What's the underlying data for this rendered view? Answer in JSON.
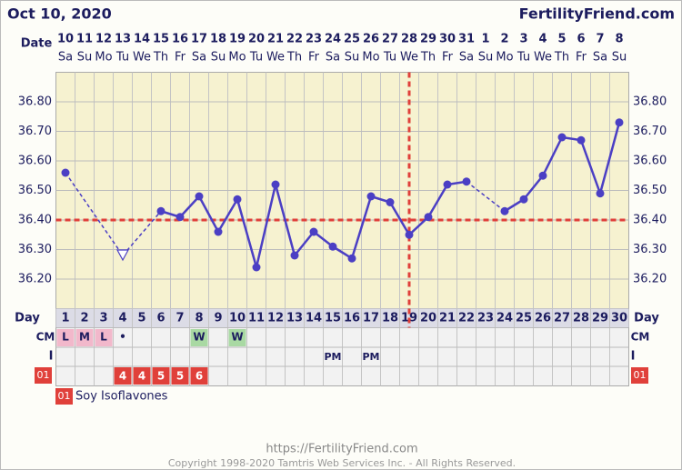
{
  "chart_data": {
    "type": "line",
    "title": "Oct 10, 2020",
    "site": "FertilityFriend.com",
    "date_label": "Date",
    "dates": [
      "10",
      "11",
      "12",
      "13",
      "14",
      "15",
      "16",
      "17",
      "18",
      "19",
      "20",
      "21",
      "22",
      "23",
      "24",
      "25",
      "26",
      "27",
      "28",
      "29",
      "30",
      "31",
      "1",
      "2",
      "3",
      "4",
      "5",
      "6",
      "7",
      "8"
    ],
    "weekdays": [
      "Sa",
      "Su",
      "Mo",
      "Tu",
      "We",
      "Th",
      "Fr",
      "Sa",
      "Su",
      "Mo",
      "Tu",
      "We",
      "Th",
      "Fr",
      "Sa",
      "Su",
      "Mo",
      "Tu",
      "We",
      "Th",
      "Fr",
      "Sa",
      "Su",
      "Mo",
      "Tu",
      "We",
      "Th",
      "Fr",
      "Sa",
      "Su"
    ],
    "day_label": "Day",
    "days": [
      1,
      2,
      3,
      4,
      5,
      6,
      7,
      8,
      9,
      10,
      11,
      12,
      13,
      14,
      15,
      16,
      17,
      18,
      19,
      20,
      21,
      22,
      23,
      24,
      25,
      26,
      27,
      28,
      29,
      30
    ],
    "values": [
      36.56,
      null,
      null,
      36.28,
      null,
      36.43,
      36.41,
      36.48,
      36.36,
      36.47,
      36.24,
      36.52,
      36.28,
      36.36,
      36.31,
      36.27,
      36.48,
      36.46,
      36.35,
      36.41,
      36.52,
      36.53,
      null,
      36.43,
      36.47,
      36.55,
      36.68,
      36.67,
      36.49,
      36.73
    ],
    "open_marker_days": [
      4
    ],
    "color": "#4b3fc4",
    "coverline": 36.4,
    "ovulation_day": 19,
    "reference_color": "#e0403a",
    "ylim": [
      36.1,
      36.9
    ],
    "yticks": [
      {
        "value": 36.2,
        "label": "36.20"
      },
      {
        "value": 36.3,
        "label": "36.30"
      },
      {
        "value": 36.4,
        "label": "36.40"
      },
      {
        "value": 36.5,
        "label": "36.50"
      },
      {
        "value": 36.6,
        "label": "36.60"
      },
      {
        "value": 36.7,
        "label": "36.70"
      },
      {
        "value": 36.8,
        "label": "36.80"
      }
    ],
    "grid": true,
    "cm_label": "CM",
    "cm": [
      "L",
      "M",
      "L",
      "•",
      null,
      null,
      null,
      "W",
      null,
      "W",
      null,
      null,
      null,
      null,
      null,
      null,
      null,
      null,
      null,
      null,
      null,
      null,
      null,
      null,
      null,
      null,
      null,
      null,
      null,
      null
    ],
    "i_label": "I",
    "i": [
      null,
      null,
      null,
      null,
      null,
      null,
      null,
      null,
      null,
      null,
      null,
      null,
      null,
      null,
      "PM",
      null,
      "PM",
      null,
      null,
      null,
      null,
      null,
      null,
      null,
      null,
      null,
      null,
      null,
      null,
      null
    ],
    "supplement_code": "01",
    "supplement": [
      null,
      null,
      null,
      4,
      4,
      5,
      5,
      6,
      null,
      null,
      null,
      null,
      null,
      null,
      null,
      null,
      null,
      null,
      null,
      null,
      null,
      null,
      null,
      null,
      null,
      null,
      null,
      null,
      null,
      null
    ],
    "supplement_name": "Soy Isoflavones",
    "footer_url": "https://FertilityFriend.com",
    "copyright": "Copyright 1998-2020 Tamtris Web Services Inc. - All Rights Reserved."
  }
}
